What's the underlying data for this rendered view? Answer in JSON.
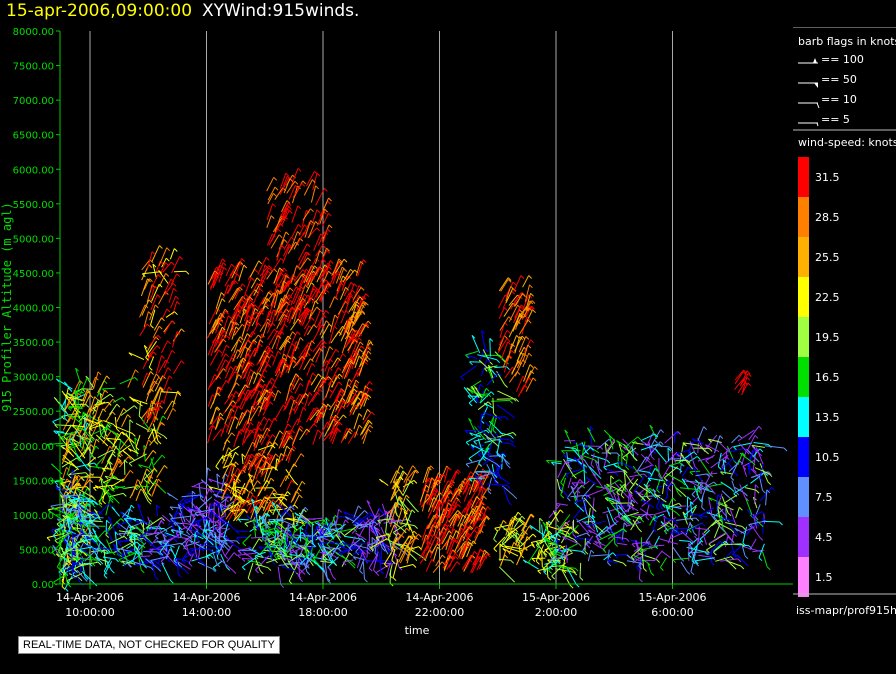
{
  "header": {
    "datetime": "15-apr-2006,09:00:00",
    "product": "XYWind:915winds."
  },
  "notice": "REAL-TIME DATA, NOT CHECKED FOR QUALITY",
  "chart_data": {
    "type": "scatter",
    "title": "XYWind:915winds.",
    "xlabel": "time",
    "ylabel": "915 Profiler Altitude (m agl)",
    "x_range_hours": [
      7.5,
      27.5
    ],
    "ylim": [
      0,
      8000
    ],
    "y_ticks": [
      "0.00",
      "500.00",
      "1000.00",
      "1500.00",
      "2000.00",
      "2500.00",
      "3000.00",
      "3500.00",
      "4000.00",
      "4500.00",
      "5000.00",
      "5500.00",
      "6000.00",
      "6500.00",
      "7000.00",
      "7500.00",
      "8000.00"
    ],
    "x_ticks": [
      {
        "hour": 10,
        "date": "14-Apr-2006",
        "time": "10:00:00"
      },
      {
        "hour": 14,
        "date": "14-Apr-2006",
        "time": "14:00:00"
      },
      {
        "hour": 18,
        "date": "14-Apr-2006",
        "time": "18:00:00"
      },
      {
        "hour": 22,
        "date": "14-Apr-2006",
        "time": "22:00:00"
      },
      {
        "hour": 26,
        "date": "15-Apr-2006",
        "time": "2:00:00"
      },
      {
        "hour": 30,
        "date": "15-Apr-2006",
        "time": "6:00:00"
      }
    ],
    "grid_vertical": true,
    "legend_position": "right",
    "barb_legend": {
      "title": "barb flags in knots",
      "items": [
        "== 100",
        "== 50",
        "== 10",
        "== 5"
      ]
    },
    "speed_legend": {
      "title": "wind-speed: knots",
      "items": [
        {
          "label": "31.5",
          "color": "#ff0000"
        },
        {
          "label": "28.5",
          "color": "#ff8000"
        },
        {
          "label": "25.5",
          "color": "#ffb000"
        },
        {
          "label": "22.5",
          "color": "#ffff00"
        },
        {
          "label": "19.5",
          "color": "#a0ff40"
        },
        {
          "label": "16.5",
          "color": "#00e000"
        },
        {
          "label": "13.5",
          "color": "#00ffff"
        },
        {
          "label": "10.5",
          "color": "#0000ff"
        },
        {
          "label": "7.5",
          "color": "#6090ff"
        },
        {
          "label": "4.5",
          "color": "#a030ff"
        },
        {
          "label": "1.5",
          "color": "#ff80ff"
        }
      ]
    },
    "source_label": "iss-mapr/prof915h",
    "clusters": [
      {
        "t0": 7.6,
        "t1": 9.9,
        "h0": 150,
        "h1": 2900,
        "speeds": [
          20,
          23,
          26,
          29,
          17,
          14
        ],
        "n": 420
      },
      {
        "t0": 8.0,
        "t1": 9.8,
        "h0": 150,
        "h1": 1400,
        "speeds": [
          20,
          23,
          17,
          14,
          11,
          8
        ],
        "n": 200
      },
      {
        "t0": 9.0,
        "t1": 12.0,
        "h0": 250,
        "h1": 1000,
        "speeds": [
          20,
          17,
          14,
          11,
          8
        ],
        "n": 140
      },
      {
        "t0": 9.6,
        "t1": 12.3,
        "h0": 1200,
        "h1": 2900,
        "speeds": [
          23,
          26,
          29,
          20,
          17
        ],
        "n": 150
      },
      {
        "t0": 11.7,
        "t1": 12.9,
        "h0": 2300,
        "h1": 4700,
        "speeds": [
          31,
          29,
          26,
          31,
          23
        ],
        "n": 80
      },
      {
        "t0": 12.0,
        "t1": 14.8,
        "h0": 300,
        "h1": 1000,
        "speeds": [
          8,
          5,
          11,
          3,
          14
        ],
        "n": 130
      },
      {
        "t0": 13.0,
        "t1": 14.6,
        "h0": 800,
        "h1": 1500,
        "speeds": [
          8,
          5,
          11
        ],
        "n": 50
      },
      {
        "t0": 14.0,
        "t1": 19.2,
        "h0": 2000,
        "h1": 4500,
        "speeds": [
          31,
          31,
          31,
          29,
          26
        ],
        "n": 480
      },
      {
        "t0": 16.0,
        "t1": 18.0,
        "h0": 3600,
        "h1": 5800,
        "speeds": [
          31,
          31,
          29
        ],
        "n": 120
      },
      {
        "t0": 14.5,
        "t1": 17.0,
        "h0": 900,
        "h1": 2000,
        "speeds": [
          31,
          29,
          26,
          23
        ],
        "n": 140
      },
      {
        "t0": 18.6,
        "t1": 19.4,
        "h0": 2000,
        "h1": 4000,
        "speeds": [
          29,
          31,
          26
        ],
        "n": 60
      },
      {
        "t0": 15.4,
        "t1": 18.8,
        "h0": 250,
        "h1": 1000,
        "speeds": [
          14,
          11,
          8,
          5,
          17,
          20
        ],
        "n": 220
      },
      {
        "t0": 19.0,
        "t1": 20.5,
        "h0": 300,
        "h1": 1000,
        "speeds": [
          8,
          5,
          11,
          3
        ],
        "n": 80
      },
      {
        "t0": 20.2,
        "t1": 21.0,
        "h0": 200,
        "h1": 1500,
        "speeds": [
          23,
          26,
          20,
          29
        ],
        "n": 70
      },
      {
        "t0": 21.3,
        "t1": 23.5,
        "h0": 150,
        "h1": 1500,
        "speeds": [
          31,
          29,
          31,
          26
        ],
        "n": 200
      },
      {
        "t0": 23.4,
        "t1": 24.2,
        "h0": 1400,
        "h1": 2200,
        "speeds": [
          14,
          11,
          8
        ],
        "n": 40
      },
      {
        "t0": 23.2,
        "t1": 24.0,
        "h0": 2100,
        "h1": 3400,
        "speeds": [
          17,
          20,
          14,
          11
        ],
        "n": 60
      },
      {
        "t0": 24.0,
        "t1": 25.0,
        "h0": 2700,
        "h1": 4300,
        "speeds": [
          29,
          26,
          31
        ],
        "n": 70
      },
      {
        "t0": 24.0,
        "t1": 25.0,
        "h0": 250,
        "h1": 900,
        "speeds": [
          23,
          20,
          26
        ],
        "n": 40
      },
      {
        "t0": 25.4,
        "t1": 26.4,
        "h0": 200,
        "h1": 900,
        "speeds": [
          20,
          17,
          14,
          23
        ],
        "n": 60
      },
      {
        "t0": 26.0,
        "t1": 33.2,
        "h0": 300,
        "h1": 2100,
        "speeds": [
          5,
          8,
          3,
          11,
          14,
          17,
          20
        ],
        "n": 500
      },
      {
        "t0": 32.0,
        "t1": 32.6,
        "h0": 2700,
        "h1": 3000,
        "speeds": [
          31
        ],
        "n": 8
      }
    ]
  }
}
